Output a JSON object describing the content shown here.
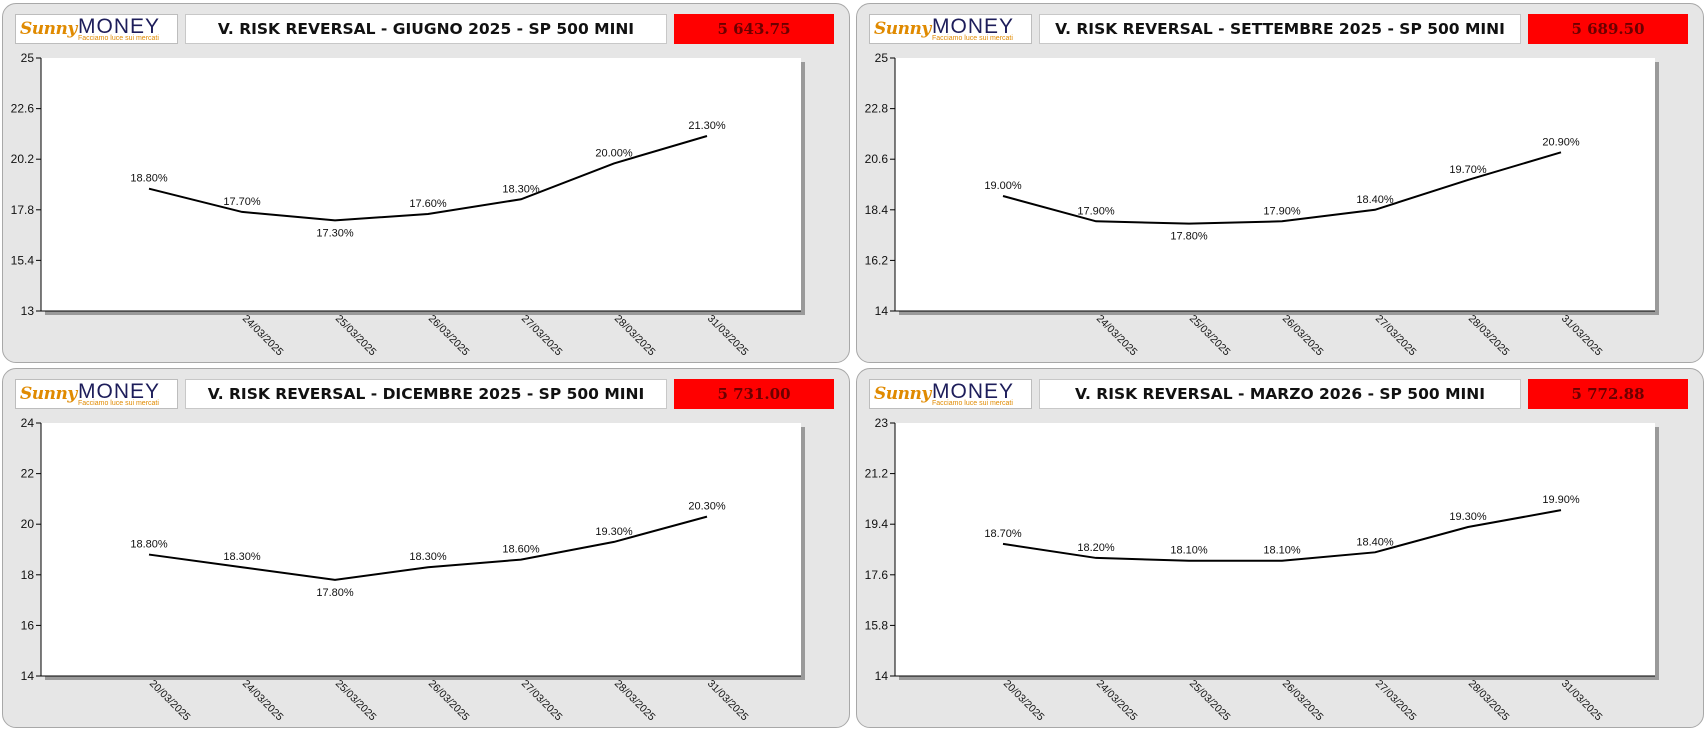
{
  "logo": {
    "sunny": "Sunny",
    "money": "MONEY",
    "tagline": "Facciamo luce sui mercati"
  },
  "colors": {
    "panel_bg": "#e6e6e6",
    "price_bg": "#ff0000",
    "price_text": "#6b0000",
    "line": "#000000",
    "logo_orange": "#e08a00",
    "logo_navy": "#1d1d5a"
  },
  "panels": [
    {
      "title": "V. RISK REVERSAL - GIUGNO 2025 - SP 500 MINI",
      "price": "5 643.75"
    },
    {
      "title": "V. RISK REVERSAL - SETTEMBRE 2025 - SP 500 MINI",
      "price": "5 689.50"
    },
    {
      "title": "V. RISK REVERSAL - DICEMBRE 2025 - SP 500 MINI",
      "price": "5 731.00"
    },
    {
      "title": "V. RISK REVERSAL - MARZO 2026 - SP 500 MINI",
      "price": "5 772.88"
    }
  ],
  "chart_data": [
    {
      "type": "line",
      "categories": [
        "",
        "24/03/2025",
        "25/03/2025",
        "26/03/2025",
        "27/03/2025",
        "28/03/2025",
        "31/03/2025"
      ],
      "values": [
        18.8,
        17.7,
        17.3,
        17.6,
        18.3,
        20.0,
        21.3
      ],
      "point_labels": [
        "18.80%",
        "17.70%",
        "17.30%",
        "17.60%",
        "18.30%",
        "20.00%",
        "21.30%"
      ],
      "label_pos": [
        "above",
        "above",
        "below",
        "above",
        "above",
        "above",
        "above"
      ],
      "yticks": [
        "25",
        "22.6",
        "20.2",
        "17.8",
        "15.4",
        "13"
      ],
      "ylim": [
        13,
        25
      ],
      "grid": false
    },
    {
      "type": "line",
      "categories": [
        "",
        "24/03/2025",
        "25/03/2025",
        "26/03/2025",
        "27/03/2025",
        "28/03/2025",
        "31/03/2025"
      ],
      "values": [
        19.0,
        17.9,
        17.8,
        17.9,
        18.4,
        19.7,
        20.9
      ],
      "point_labels": [
        "19.00%",
        "17.90%",
        "17.80%",
        "17.90%",
        "18.40%",
        "19.70%",
        "20.90%"
      ],
      "label_pos": [
        "above",
        "above",
        "below",
        "above",
        "above",
        "above",
        "above"
      ],
      "yticks": [
        "25",
        "22.8",
        "20.6",
        "18.4",
        "16.2",
        "14"
      ],
      "ylim": [
        14,
        25
      ],
      "grid": false
    },
    {
      "type": "line",
      "categories": [
        "20/03/2025",
        "24/03/2025",
        "25/03/2025",
        "26/03/2025",
        "27/03/2025",
        "28/03/2025",
        "31/03/2025"
      ],
      "values": [
        18.8,
        18.3,
        17.8,
        18.3,
        18.6,
        19.3,
        20.3
      ],
      "point_labels": [
        "18.80%",
        "18.30%",
        "17.80%",
        "18.30%",
        "18.60%",
        "19.30%",
        "20.30%"
      ],
      "label_pos": [
        "above",
        "above",
        "below",
        "above",
        "above",
        "above",
        "above"
      ],
      "yticks": [
        "24",
        "22",
        "20",
        "18",
        "16",
        "14"
      ],
      "ylim": [
        14,
        24
      ],
      "grid": false
    },
    {
      "type": "line",
      "categories": [
        "20/03/2025",
        "24/03/2025",
        "25/03/2025",
        "26/03/2025",
        "27/03/2025",
        "28/03/2025",
        "31/03/2025"
      ],
      "values": [
        18.7,
        18.2,
        18.1,
        18.1,
        18.4,
        19.3,
        19.9
      ],
      "point_labels": [
        "18.70%",
        "18.20%",
        "18.10%",
        "18.10%",
        "18.40%",
        "19.30%",
        "19.90%"
      ],
      "label_pos": [
        "above",
        "above",
        "above",
        "above",
        "above",
        "above",
        "above"
      ],
      "yticks": [
        "23",
        "21.2",
        "19.4",
        "17.6",
        "15.8",
        "14"
      ],
      "ylim": [
        14,
        23
      ],
      "grid": false
    }
  ]
}
